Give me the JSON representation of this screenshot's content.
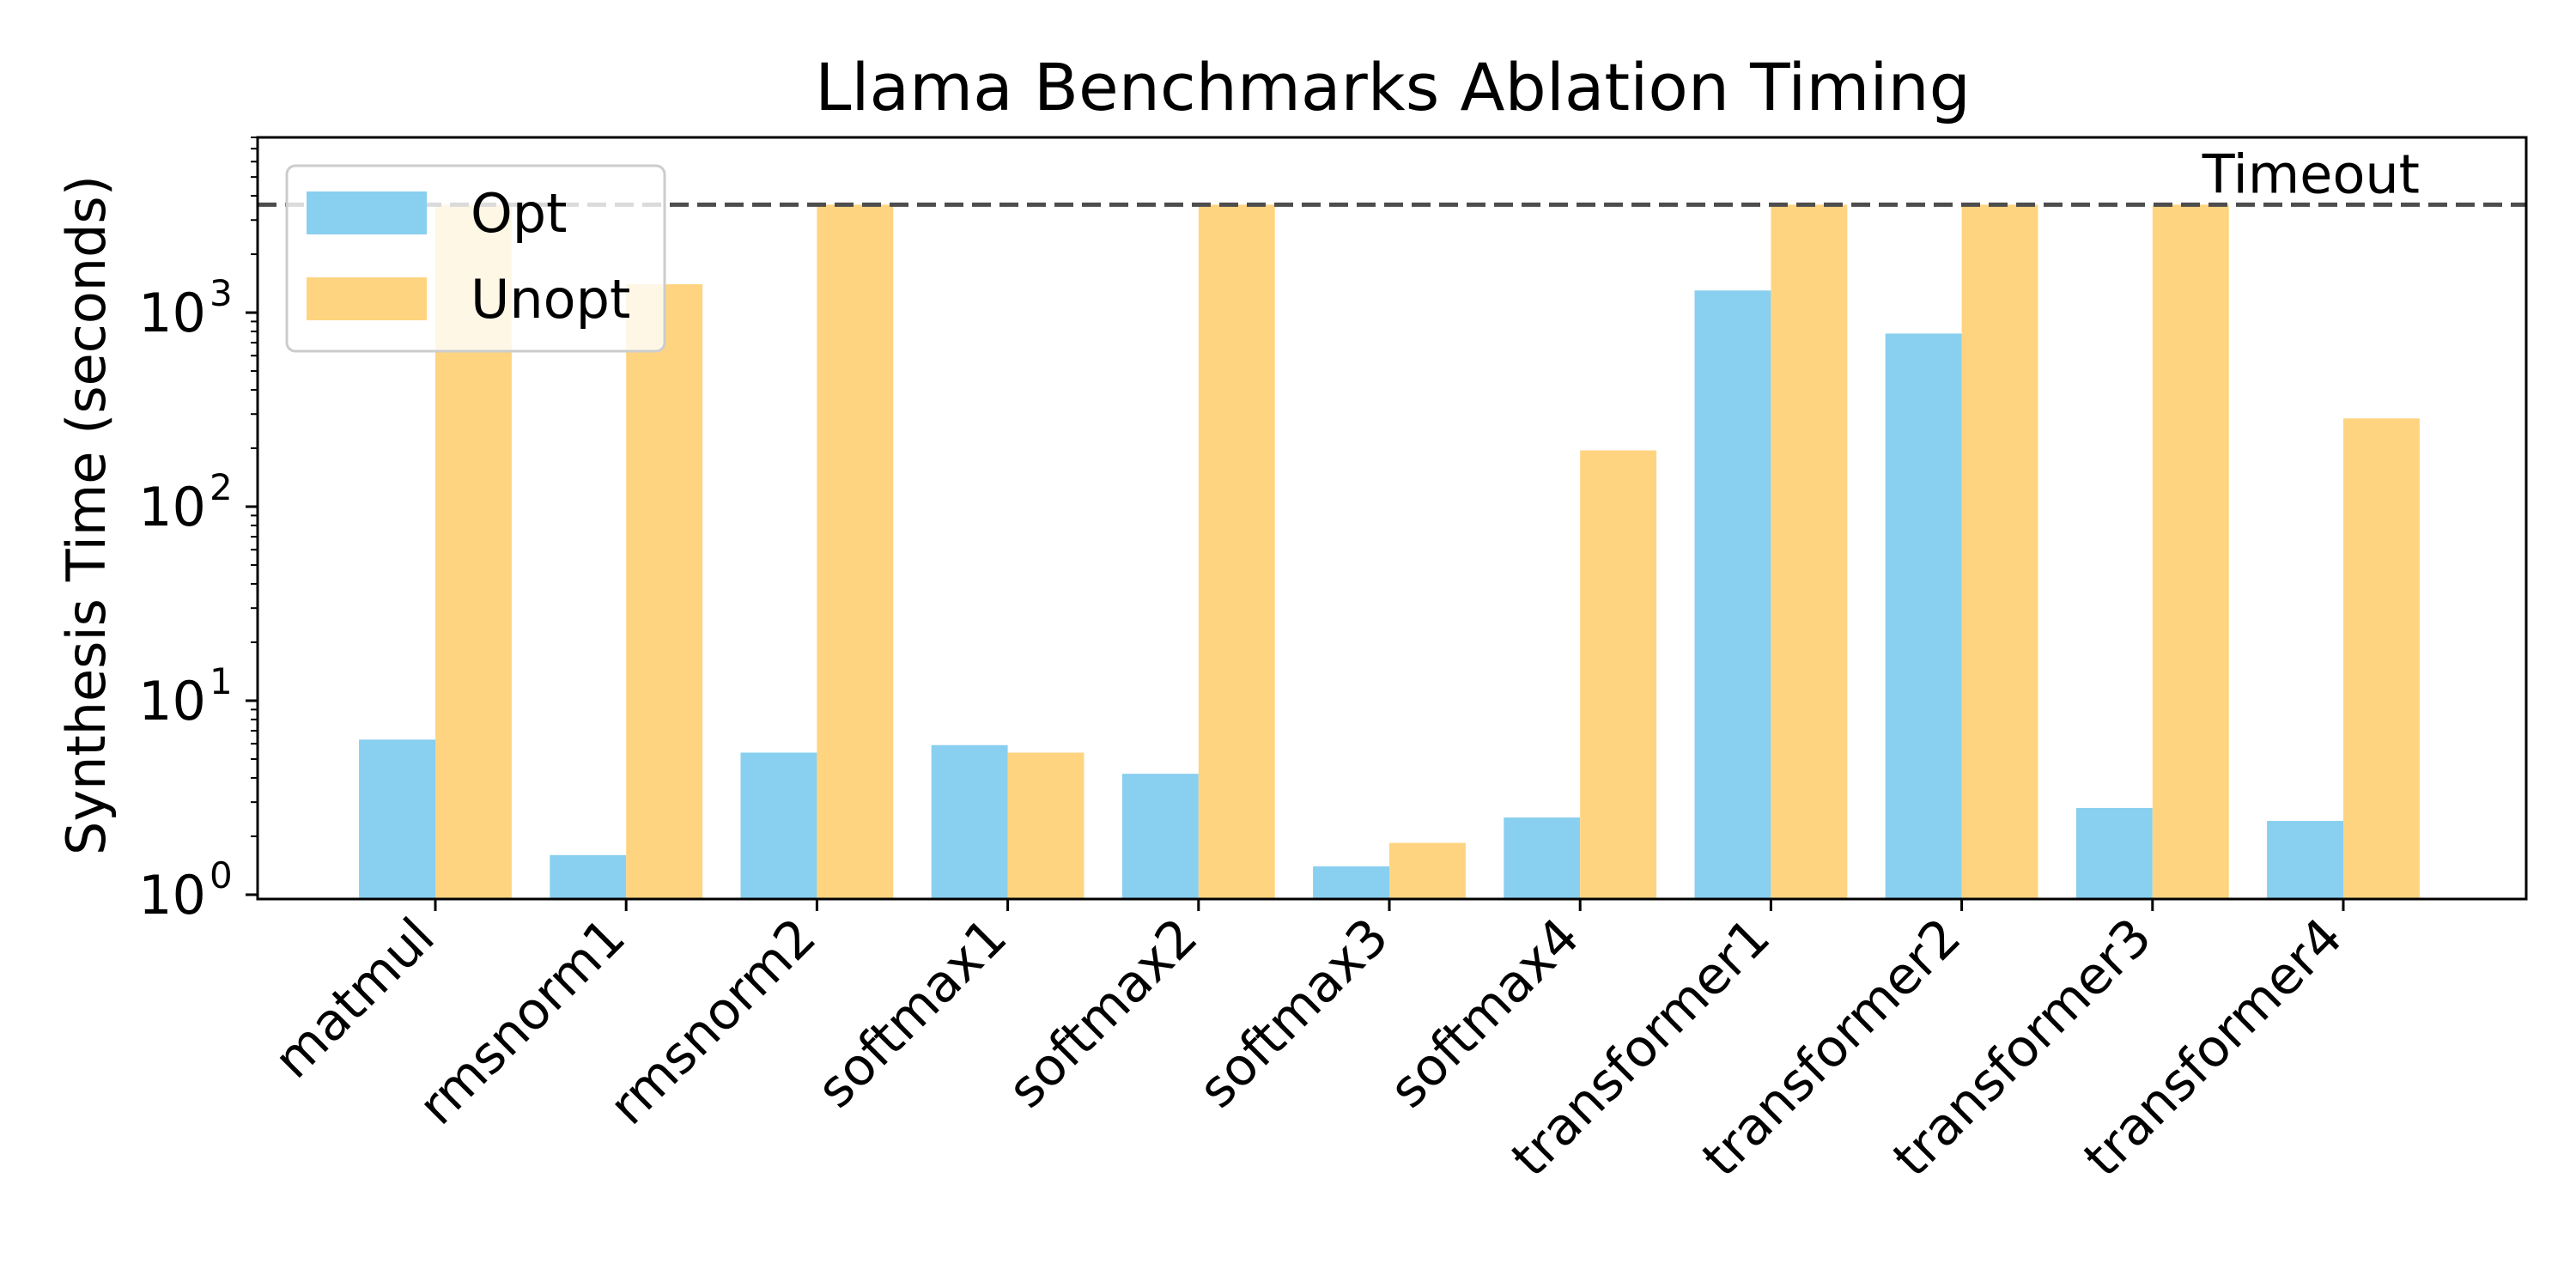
{
  "chart_data": {
    "type": "bar",
    "title": "Llama Benchmarks Ablation Timing",
    "xlabel": "",
    "ylabel": "Synthesis Time (seconds)",
    "yscale": "log",
    "ylim": [
      0.95,
      8000
    ],
    "yticks": [
      {
        "base": "10",
        "exp": "0",
        "value": 1
      },
      {
        "base": "10",
        "exp": "1",
        "value": 10
      },
      {
        "base": "10",
        "exp": "2",
        "value": 100
      },
      {
        "base": "10",
        "exp": "3",
        "value": 1000
      }
    ],
    "categories": [
      "matmul",
      "rmsnorm1",
      "rmsnorm2",
      "softmax1",
      "softmax2",
      "softmax3",
      "softmax4",
      "transformer1",
      "transformer2",
      "transformer3",
      "transformer4"
    ],
    "series": [
      {
        "name": "Opt",
        "color": "#89CFEF",
        "values": [
          6.3,
          1.6,
          5.4,
          5.9,
          4.2,
          1.4,
          2.5,
          1300,
          780,
          2.8,
          2.4
        ]
      },
      {
        "name": "Unopt",
        "color": "#FFD480",
        "values": [
          3600,
          1400,
          3600,
          5.4,
          3600,
          1.85,
          195,
          3600,
          3600,
          3600,
          285
        ]
      }
    ],
    "reference_line": {
      "label": "Timeout",
      "value": 3600,
      "style": "dashed",
      "color": "#4d4d4d"
    },
    "legend_position": "top-left",
    "grid": false
  }
}
